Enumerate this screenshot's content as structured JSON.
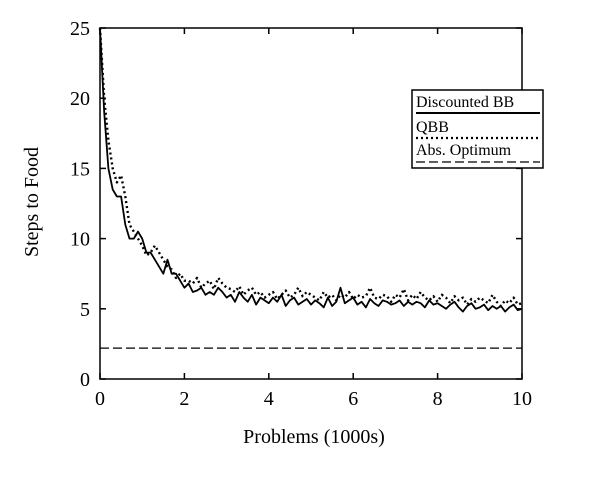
{
  "chart_data": {
    "type": "line",
    "title": "",
    "xlabel": "Problems (1000s)",
    "ylabel": "Steps to Food",
    "xlim": [
      0,
      10
    ],
    "ylim": [
      0,
      25
    ],
    "xticks": [
      0,
      2,
      4,
      6,
      8,
      10
    ],
    "yticks": [
      0,
      5,
      10,
      15,
      20,
      25
    ],
    "grid": false,
    "legend": {
      "position": "top-right"
    },
    "x": [
      0,
      0.1,
      0.2,
      0.3,
      0.4,
      0.5,
      0.6,
      0.7,
      0.8,
      0.9,
      1.0,
      1.1,
      1.2,
      1.3,
      1.4,
      1.5,
      1.6,
      1.7,
      1.8,
      1.9,
      2.0,
      2.1,
      2.2,
      2.3,
      2.4,
      2.5,
      2.6,
      2.7,
      2.8,
      2.9,
      3.0,
      3.1,
      3.2,
      3.3,
      3.4,
      3.5,
      3.6,
      3.7,
      3.8,
      3.9,
      4.0,
      4.1,
      4.2,
      4.3,
      4.4,
      4.5,
      4.6,
      4.7,
      4.8,
      4.9,
      5.0,
      5.1,
      5.2,
      5.3,
      5.4,
      5.5,
      5.6,
      5.7,
      5.8,
      5.9,
      6.0,
      6.1,
      6.2,
      6.3,
      6.4,
      6.5,
      6.6,
      6.7,
      6.8,
      6.9,
      7.0,
      7.1,
      7.2,
      7.3,
      7.4,
      7.5,
      7.6,
      7.7,
      7.8,
      7.9,
      8.0,
      8.1,
      8.2,
      8.3,
      8.4,
      8.5,
      8.6,
      8.7,
      8.8,
      8.9,
      9.0,
      9.1,
      9.2,
      9.3,
      9.4,
      9.5,
      9.6,
      9.7,
      9.8,
      9.9,
      10.0
    ],
    "series": [
      {
        "name": "Discounted BB",
        "style": "solid",
        "values": [
          25.0,
          19.0,
          15.0,
          13.5,
          13.0,
          13.0,
          11.0,
          10.0,
          10.0,
          10.5,
          10.0,
          9.0,
          9.0,
          8.5,
          8.0,
          7.5,
          8.5,
          7.5,
          7.5,
          7.0,
          6.5,
          6.8,
          6.2,
          6.3,
          6.5,
          6.0,
          6.2,
          6.0,
          6.5,
          6.2,
          5.8,
          6.0,
          5.5,
          6.2,
          5.8,
          5.5,
          6.0,
          5.3,
          5.8,
          5.6,
          5.4,
          5.8,
          5.5,
          6.0,
          5.2,
          5.6,
          5.8,
          5.3,
          5.5,
          5.7,
          5.3,
          5.6,
          5.4,
          5.1,
          5.8,
          5.2,
          5.5,
          6.5,
          5.4,
          5.6,
          5.8,
          5.3,
          5.5,
          5.1,
          5.7,
          5.4,
          5.2,
          5.6,
          5.5,
          5.3,
          5.4,
          5.6,
          5.2,
          5.5,
          5.3,
          5.5,
          5.4,
          5.1,
          5.6,
          5.3,
          5.4,
          5.2,
          5.0,
          5.3,
          5.5,
          5.1,
          4.8,
          5.2,
          5.4,
          5.0,
          5.1,
          5.3,
          4.9,
          5.2,
          5.0,
          5.2,
          4.8,
          5.1,
          5.3,
          4.9,
          5.0
        ]
      },
      {
        "name": "QBB",
        "style": "dotted",
        "values": [
          25.0,
          20.0,
          17.0,
          15.0,
          14.0,
          14.5,
          13.0,
          11.0,
          10.5,
          10.0,
          9.5,
          8.8,
          9.0,
          9.5,
          9.0,
          8.5,
          8.0,
          7.8,
          7.2,
          7.5,
          7.0,
          7.0,
          6.8,
          7.2,
          6.5,
          6.8,
          7.0,
          6.4,
          7.2,
          6.8,
          6.5,
          6.4,
          6.2,
          6.6,
          6.0,
          6.3,
          6.5,
          6.0,
          6.2,
          5.8,
          6.0,
          6.2,
          5.7,
          6.0,
          6.3,
          5.8,
          6.0,
          6.5,
          5.9,
          6.2,
          6.0,
          5.8,
          5.6,
          6.2,
          5.8,
          6.0,
          5.6,
          6.0,
          5.8,
          6.2,
          5.7,
          6.0,
          5.8,
          5.9,
          6.5,
          5.8,
          5.7,
          6.0,
          5.9,
          5.5,
          6.0,
          5.8,
          6.4,
          5.6,
          6.0,
          5.7,
          6.2,
          5.8,
          5.6,
          5.9,
          5.5,
          6.0,
          5.8,
          5.4,
          5.9,
          5.6,
          5.8,
          5.3,
          5.7,
          5.5,
          5.8,
          5.6,
          5.4,
          6.0,
          5.5,
          5.2,
          5.6,
          5.4,
          5.8,
          5.3,
          5.4
        ]
      },
      {
        "name": "Abs. Optimum",
        "style": "dashed",
        "values": [
          2.2,
          2.2,
          2.2,
          2.2,
          2.2,
          2.2,
          2.2,
          2.2,
          2.2,
          2.2,
          2.2,
          2.2,
          2.2,
          2.2,
          2.2,
          2.2,
          2.2,
          2.2,
          2.2,
          2.2,
          2.2,
          2.2,
          2.2,
          2.2,
          2.2,
          2.2,
          2.2,
          2.2,
          2.2,
          2.2,
          2.2,
          2.2,
          2.2,
          2.2,
          2.2,
          2.2,
          2.2,
          2.2,
          2.2,
          2.2,
          2.2,
          2.2,
          2.2,
          2.2,
          2.2,
          2.2,
          2.2,
          2.2,
          2.2,
          2.2,
          2.2,
          2.2,
          2.2,
          2.2,
          2.2,
          2.2,
          2.2,
          2.2,
          2.2,
          2.2,
          2.2,
          2.2,
          2.2,
          2.2,
          2.2,
          2.2,
          2.2,
          2.2,
          2.2,
          2.2,
          2.2,
          2.2,
          2.2,
          2.2,
          2.2,
          2.2,
          2.2,
          2.2,
          2.2,
          2.2,
          2.2,
          2.2,
          2.2,
          2.2,
          2.2,
          2.2,
          2.2,
          2.2,
          2.2,
          2.2,
          2.2,
          2.2,
          2.2,
          2.2,
          2.2,
          2.2,
          2.2,
          2.2,
          2.2,
          2.2,
          2.2
        ]
      }
    ]
  }
}
